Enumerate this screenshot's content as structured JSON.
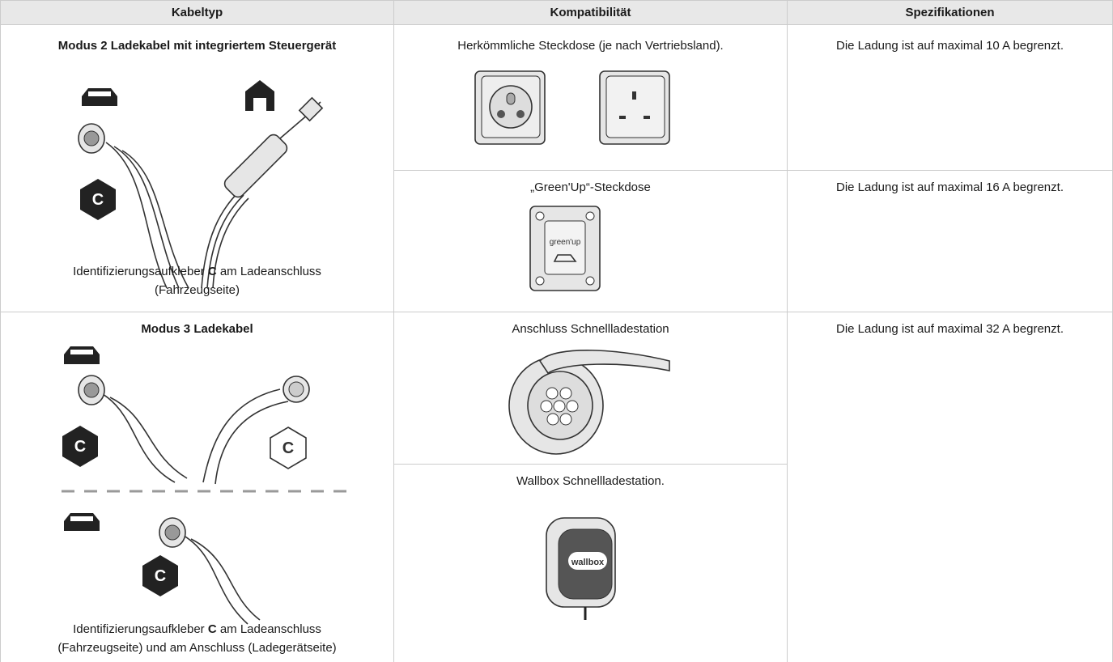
{
  "table": {
    "headers": [
      "Kabeltyp",
      "Kompatibilität",
      "Spezifikationen"
    ],
    "rows": [
      {
        "cable_type": "Modus 2 Ladekabel mit integriertem Steuergerät",
        "caption": [
          "Identifizierungsaufkleber ",
          "C",
          " am Ladeanschluss",
          "(Fahrzeugseite)"
        ],
        "compatibility": [
          {
            "label": "Herkömmliche Steckdose (je nach Vertriebsland).",
            "spec": "Die Ladung ist auf maximal 10 A begrenzt."
          },
          {
            "label": "„Green'Up“-Steckdose",
            "spec": "Die Ladung ist auf maximal 16 A begrenzt.",
            "image_text": "green'up"
          }
        ]
      },
      {
        "cable_type": "Modus 3 Ladekabel",
        "caption": [
          "Identifizierungsaufkleber ",
          "C",
          " am Ladeanschluss",
          "(Fahrzeugseite) und am Anschluss (Ladegerätseite)"
        ],
        "spec": "Die Ladung ist auf maximal 32 A begrenzt.",
        "compatibility": [
          {
            "label": "Anschluss Schnellladestation"
          },
          {
            "label": "Wallbox Schnellladestation.",
            "image_text": "wallbox"
          }
        ]
      }
    ]
  }
}
